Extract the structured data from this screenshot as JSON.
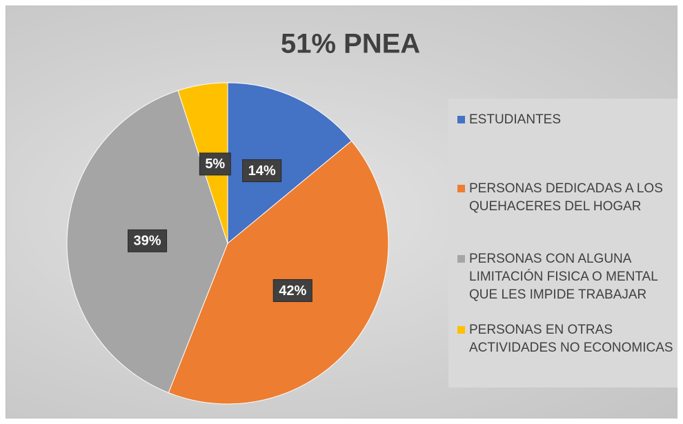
{
  "chart_data": {
    "type": "pie",
    "title": "51% PNEA",
    "categories": [
      "ESTUDIANTES",
      "PERSONAS DEDICADAS A LOS QUEHACERES DEL HOGAR",
      "PERSONAS CON ALGUNA LIMITACIÓN FISICA O MENTAL QUE LES IMPIDE TRABAJAR",
      "PERSONAS EN OTRAS ACTIVIDADES NO ECONOMICAS"
    ],
    "values": [
      14,
      42,
      39,
      5
    ],
    "value_labels": [
      "14%",
      "42%",
      "39%",
      "5%"
    ],
    "colors": [
      "#4472c4",
      "#ed7d31",
      "#a5a5a5",
      "#ffc000"
    ],
    "legend": "right"
  }
}
